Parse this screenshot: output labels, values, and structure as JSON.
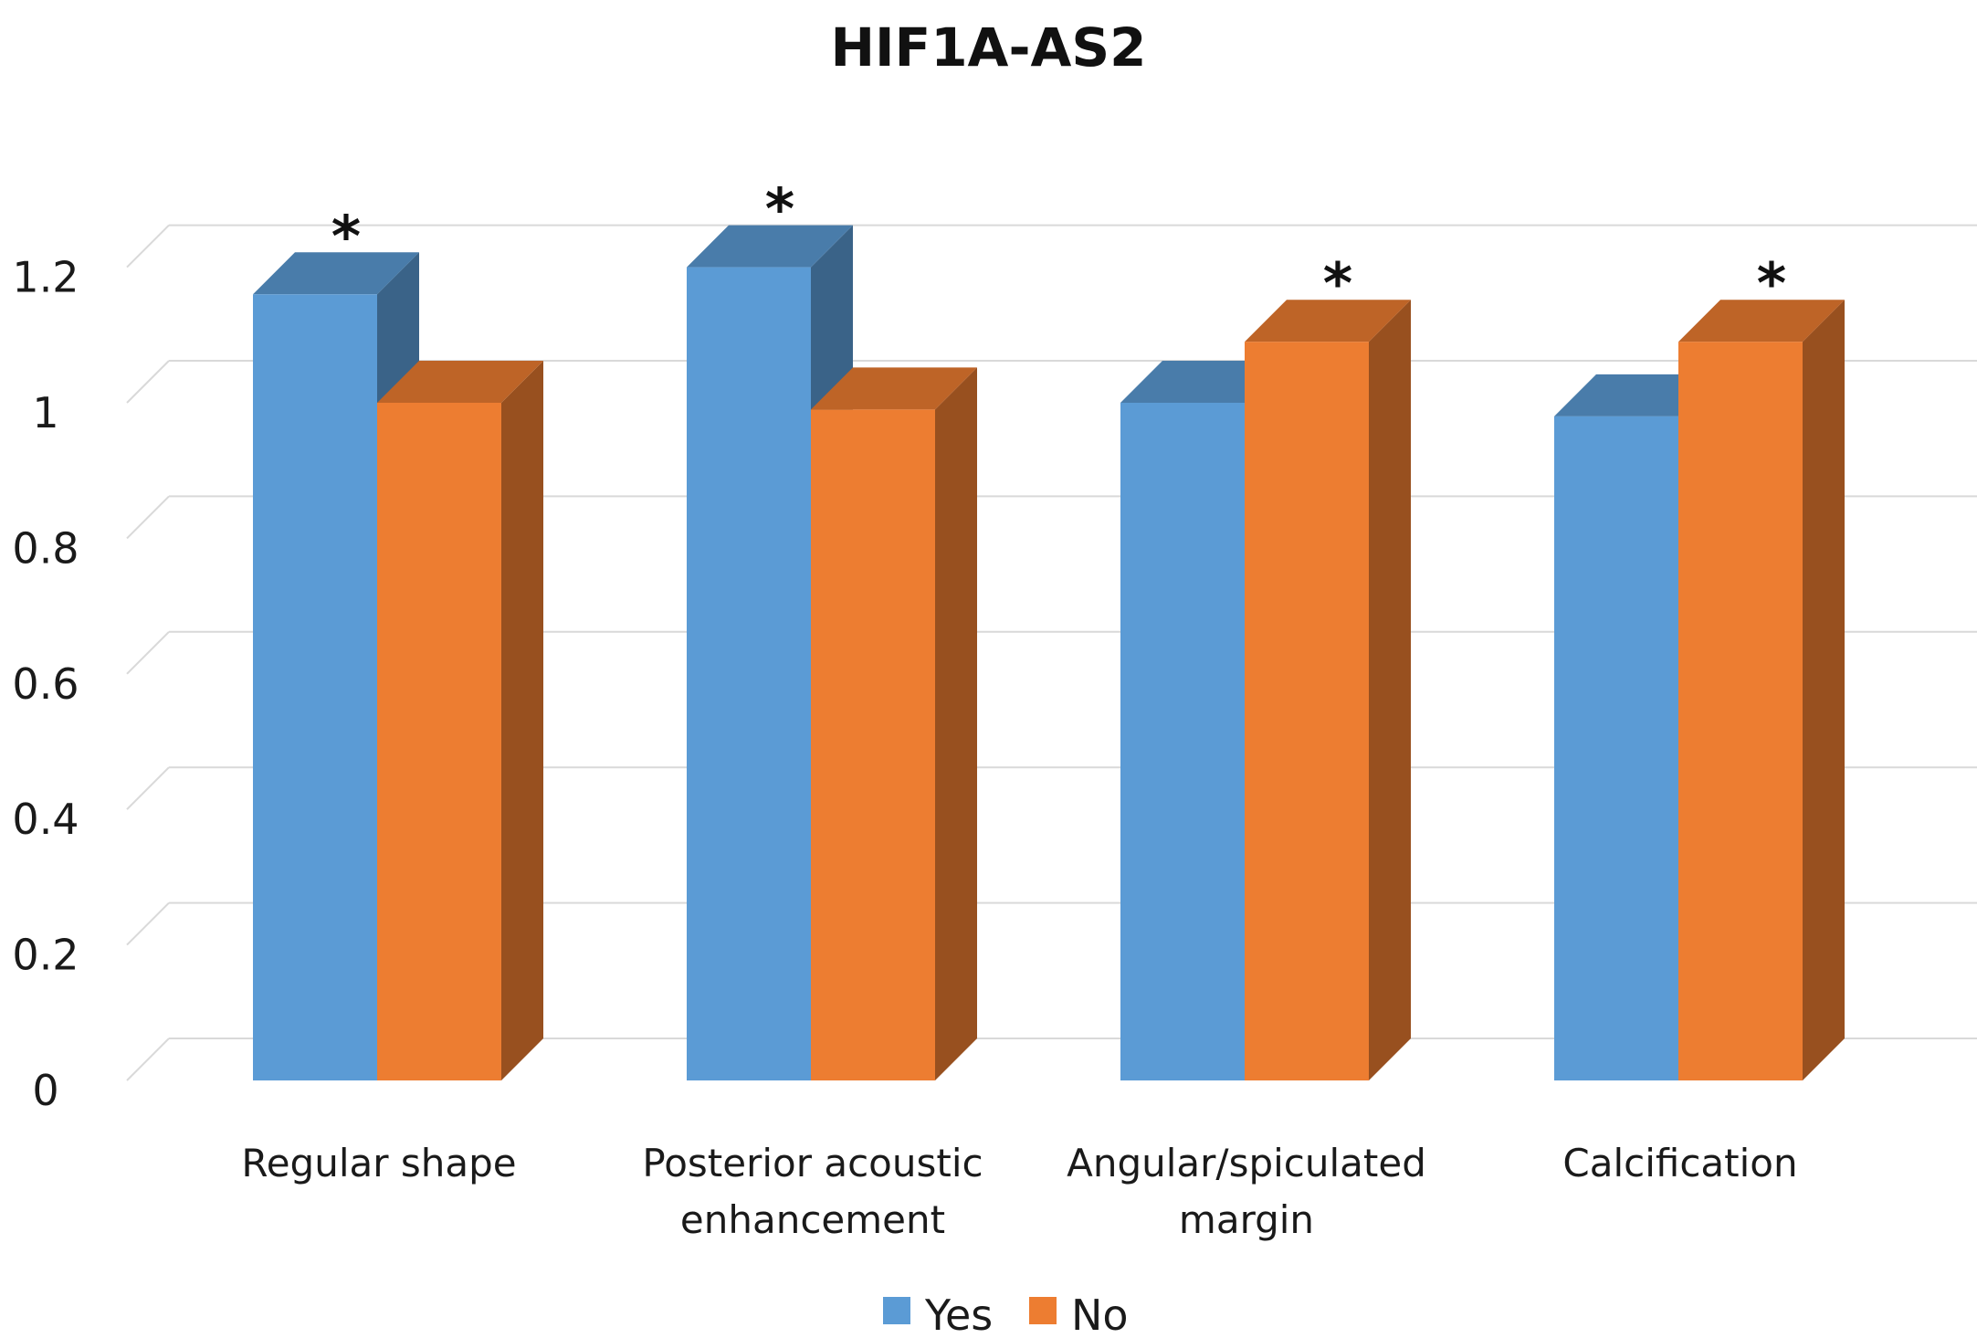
{
  "chart_data": {
    "type": "bar",
    "title": "HIF1A-AS2",
    "categories": [
      "Regular shape",
      "Posterior acoustic enhancement",
      "Angular/spiculated margin",
      "Calcification"
    ],
    "category_label_lines": [
      [
        "Regular shape"
      ],
      [
        "Posterior acoustic",
        "enhancement"
      ],
      [
        "Angular/spiculated",
        "margin"
      ],
      [
        "Calcification"
      ]
    ],
    "series": [
      {
        "name": "Yes",
        "color": "#5B9BD5",
        "values": [
          1.16,
          1.2,
          1.0,
          0.98
        ]
      },
      {
        "name": "No",
        "color": "#ED7D31",
        "values": [
          1.0,
          0.99,
          1.09,
          1.09
        ]
      }
    ],
    "significant": [
      0,
      0,
      1,
      1
    ],
    "significance_marker": "*",
    "ylim": [
      0,
      1.2
    ],
    "ytick_labels": [
      "0",
      "0.2",
      "0.4",
      "0.6",
      "0.8",
      "1",
      "1.2"
    ],
    "grid": true,
    "legend_position": "bottom",
    "xlabel": "",
    "ylabel": ""
  }
}
